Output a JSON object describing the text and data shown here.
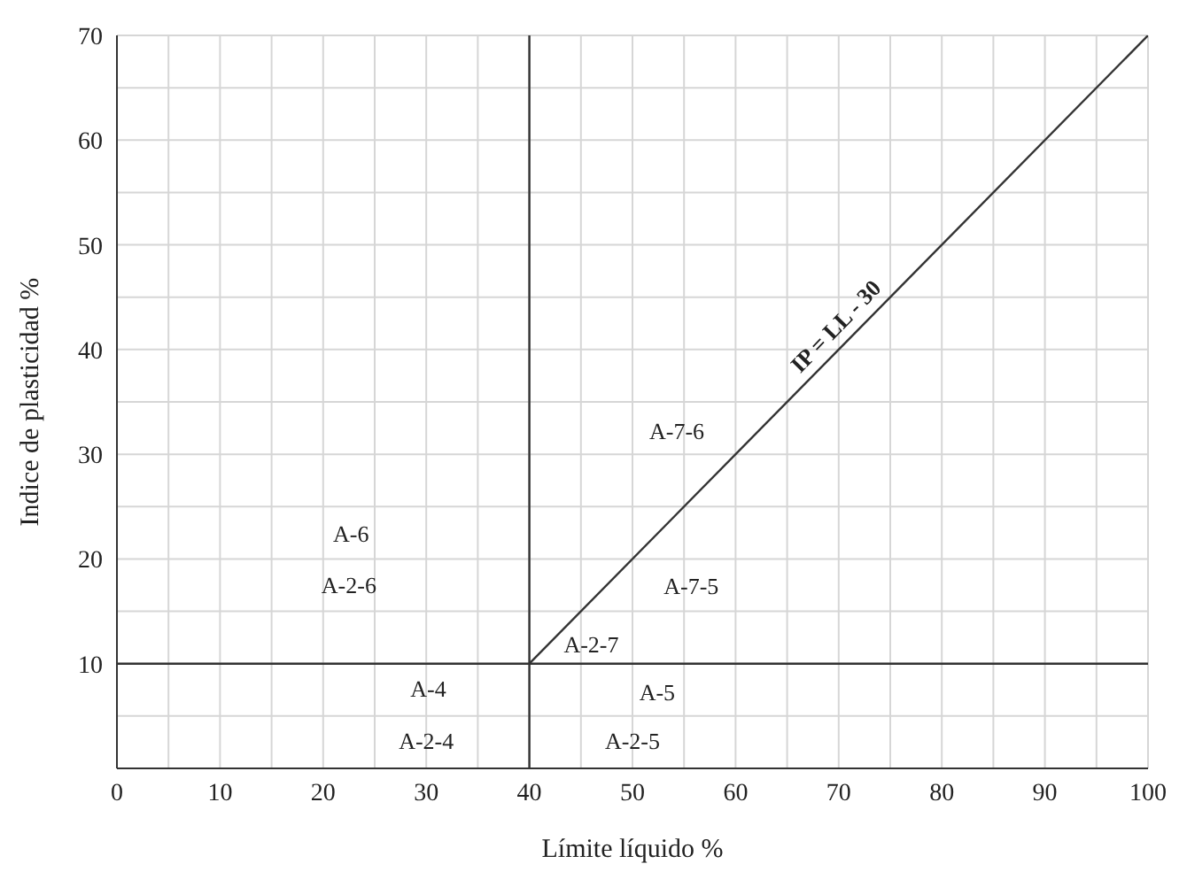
{
  "chart_data": {
    "type": "line",
    "xlabel": "Límite líquido %",
    "ylabel": "Indice de plasticidad %",
    "xlim": [
      0,
      100
    ],
    "ylim": [
      0,
      70
    ],
    "xticks": [
      0,
      {
        "value": 5,
        "label": null
      },
      10,
      {
        "value": 15,
        "label": null
      },
      20,
      {
        "value": 25,
        "label": null
      },
      30,
      {
        "value": 35,
        "label": null
      },
      40,
      {
        "value": 45,
        "label": null
      },
      50,
      {
        "value": 55,
        "label": null
      },
      60,
      {
        "value": 65,
        "label": null
      },
      70,
      {
        "value": 75,
        "label": null
      },
      80,
      {
        "value": 85,
        "label": null
      },
      90,
      {
        "value": 95,
        "label": null
      },
      100
    ],
    "yticks": [
      {
        "value": 5,
        "label": null
      },
      10,
      {
        "value": 15,
        "label": null
      },
      20,
      {
        "value": 25,
        "label": null
      },
      30,
      {
        "value": 35,
        "label": null
      },
      40,
      {
        "value": 45,
        "label": null
      },
      50,
      {
        "value": 55,
        "label": null
      },
      60,
      {
        "value": 65,
        "label": null
      },
      70
    ],
    "grid": true,
    "legend": false,
    "marker": "none",
    "line_style": "solid",
    "series": [
      {
        "color": "#333333",
        "x": [
          40,
          100
        ],
        "values": [
          10,
          70
        ]
      },
      {
        "color": "#333333",
        "x": [
          40,
          40
        ],
        "values": [
          0,
          70
        ]
      },
      {
        "color": "#333333",
        "x": [
          0,
          100
        ],
        "values": [
          10,
          10
        ]
      }
    ],
    "annotations": [
      {
        "text": "IP = LL - 30",
        "x": 71,
        "y": 41
      },
      "A-7-6",
      "A-6",
      "A-2-6",
      "A-7-5",
      "A-2-7",
      "A-4",
      "A-5",
      "A-2-4",
      "A-2-5"
    ]
  }
}
